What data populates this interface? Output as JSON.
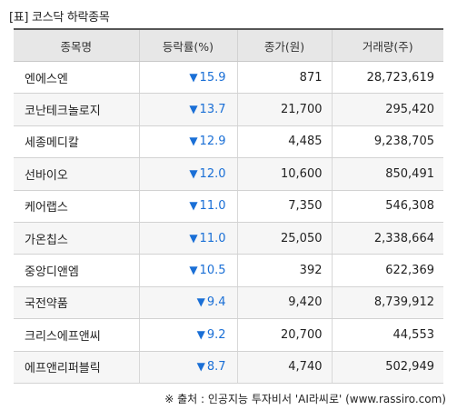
{
  "title": "[표] 코스닥 하락종목",
  "headers": [
    "종목명",
    "등락률(%)",
    "종가(원)",
    "거래량(주)"
  ],
  "rows": [
    {
      "name": "엔에스엔",
      "arrow": "▼",
      "rate": "15.9",
      "price": "871",
      "volume": "28,723,619"
    },
    {
      "name": "코난테크놀로지",
      "arrow": "▼",
      "rate": "13.7",
      "price": "21,700",
      "volume": "295,420"
    },
    {
      "name": "세종메디칼",
      "arrow": "▼",
      "rate": "12.9",
      "price": "4,485",
      "volume": "9,238,705"
    },
    {
      "name": "선바이오",
      "arrow": "▼",
      "rate": "12.0",
      "price": "10,600",
      "volume": "850,491"
    },
    {
      "name": "케어랩스",
      "arrow": "▼",
      "rate": "11.0",
      "price": "7,350",
      "volume": "546,308"
    },
    {
      "name": "가온칩스",
      "arrow": "▼",
      "rate": "11.0",
      "price": "25,050",
      "volume": "2,338,664"
    },
    {
      "name": "중앙디앤엠",
      "arrow": "▼",
      "rate": "10.5",
      "price": "392",
      "volume": "622,369"
    },
    {
      "name": "국전약품",
      "arrow": "▼",
      "rate": "9.4",
      "price": "9,420",
      "volume": "8,739,912"
    },
    {
      "name": "크리스에프앤씨",
      "arrow": "▼",
      "rate": "9.2",
      "price": "20,700",
      "volume": "44,553"
    },
    {
      "name": "에프앤리퍼블릭",
      "arrow": "▼",
      "rate": "8.7",
      "price": "4,740",
      "volume": "502,949"
    }
  ],
  "source": "※ 출처 : 인공지능 투자비서 'AI라씨로' (www.rassiro.com)",
  "colors": {
    "rate_down": "#1a6fd6",
    "header_bg": "#e7e7e7",
    "alt_row_bg": "#f6f6f6"
  }
}
